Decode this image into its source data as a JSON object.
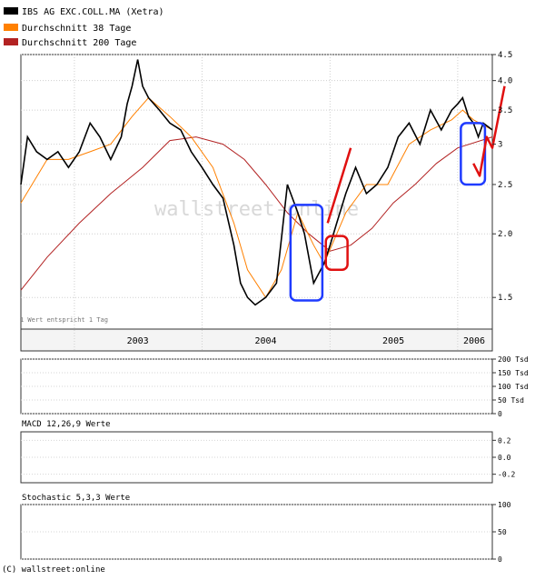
{
  "legend": [
    {
      "label": "IBS AG EXC.COLL.MA (Xetra)",
      "color": "#000000"
    },
    {
      "label": "Durchschnitt 38 Tage",
      "color": "#ff8000"
    },
    {
      "label": "Durchschnitt 200 Tage",
      "color": "#b22222"
    }
  ],
  "footer": "(C) wallstreet:online",
  "watermark": "wallstreet-online",
  "chart_data": [
    {
      "type": "line",
      "panel": "price",
      "ylim": [
        1.3,
        4.5
      ],
      "y_scale": "log",
      "y_ticks": [
        1.5,
        2.0,
        2.5,
        3.0,
        3.5,
        4.0,
        4.5
      ],
      "y_tick_labels": [
        "1.5",
        "2.0",
        "2.5",
        "3",
        "3.5",
        "4.0",
        "4.5"
      ],
      "xlim": [
        "2002-08-01",
        "2006-04-10"
      ],
      "year_ticks": [
        "2003",
        "2004",
        "2005",
        "2006"
      ],
      "annotation": "1 Wert entspricht 1 Tag",
      "grid": true,
      "series": [
        {
          "name": "IBS AG EXC.COLL.MA (Xetra)",
          "color": "#000000",
          "x": [
            "2002-08-01",
            "2002-08-20",
            "2002-09-15",
            "2002-10-15",
            "2002-11-15",
            "2002-12-15",
            "2003-01-15",
            "2003-02-15",
            "2003-03-15",
            "2003-04-15",
            "2003-05-15",
            "2003-06-01",
            "2003-06-15",
            "2003-07-01",
            "2003-07-15",
            "2003-08-01",
            "2003-09-01",
            "2003-10-01",
            "2003-11-01",
            "2003-12-01",
            "2004-01-01",
            "2004-02-01",
            "2004-03-01",
            "2004-04-01",
            "2004-04-20",
            "2004-05-10",
            "2004-06-01",
            "2004-07-01",
            "2004-08-01",
            "2004-09-01",
            "2004-10-01",
            "2004-10-20",
            "2004-11-15",
            "2004-12-15",
            "2005-01-01",
            "2005-01-20",
            "2005-02-15",
            "2005-03-15",
            "2005-04-15",
            "2005-05-15",
            "2005-06-15",
            "2005-07-15",
            "2005-08-15",
            "2005-09-15",
            "2005-10-15",
            "2005-11-15",
            "2005-12-15",
            "2006-01-01",
            "2006-01-15",
            "2006-02-01",
            "2006-02-15",
            "2006-03-01",
            "2006-03-15",
            "2006-04-10"
          ],
          "y": [
            2.5,
            3.1,
            2.9,
            2.8,
            2.9,
            2.7,
            2.9,
            3.3,
            3.1,
            2.8,
            3.1,
            3.6,
            3.9,
            4.4,
            3.9,
            3.7,
            3.5,
            3.3,
            3.2,
            2.9,
            2.7,
            2.5,
            2.35,
            1.9,
            1.6,
            1.5,
            1.45,
            1.5,
            1.6,
            2.5,
            2.2,
            2.0,
            1.6,
            1.75,
            1.9,
            2.1,
            2.4,
            2.7,
            2.4,
            2.5,
            2.7,
            3.1,
            3.3,
            3.0,
            3.5,
            3.2,
            3.5,
            3.6,
            3.7,
            3.4,
            3.3,
            3.1,
            3.3,
            3.2
          ]
        },
        {
          "name": "Durchschnitt 38 Tage",
          "color": "#ff8000",
          "x": [
            "2002-08-01",
            "2002-10-15",
            "2002-12-15",
            "2003-02-15",
            "2003-04-15",
            "2003-06-15",
            "2003-08-01",
            "2003-10-01",
            "2003-12-01",
            "2004-02-01",
            "2004-04-01",
            "2004-05-10",
            "2004-07-01",
            "2004-08-15",
            "2004-10-01",
            "2004-11-15",
            "2004-12-15",
            "2005-02-15",
            "2005-04-15",
            "2005-06-15",
            "2005-08-15",
            "2005-10-15",
            "2005-12-15",
            "2006-01-15",
            "2006-02-15",
            "2006-04-10"
          ],
          "y": [
            2.3,
            2.8,
            2.8,
            2.9,
            3.0,
            3.4,
            3.7,
            3.4,
            3.1,
            2.7,
            2.1,
            1.7,
            1.5,
            1.7,
            2.2,
            1.9,
            1.75,
            2.2,
            2.5,
            2.5,
            3.0,
            3.2,
            3.35,
            3.5,
            3.35,
            3.2
          ]
        },
        {
          "name": "Durchschnitt 200 Tage",
          "color": "#b22222",
          "x": [
            "2002-08-01",
            "2002-10-15",
            "2003-01-15",
            "2003-04-15",
            "2003-07-15",
            "2003-10-01",
            "2003-12-15",
            "2004-03-01",
            "2004-05-01",
            "2004-07-01",
            "2004-09-01",
            "2004-11-01",
            "2005-01-01",
            "2005-03-01",
            "2005-05-01",
            "2005-07-01",
            "2005-09-01",
            "2005-11-01",
            "2006-01-01",
            "2006-04-10"
          ],
          "y": [
            1.55,
            1.8,
            2.1,
            2.4,
            2.7,
            3.05,
            3.1,
            3.0,
            2.8,
            2.5,
            2.2,
            2.0,
            1.85,
            1.9,
            2.05,
            2.3,
            2.5,
            2.75,
            2.95,
            3.1
          ]
        }
      ]
    },
    {
      "type": "bar",
      "panel": "volume",
      "ylim": [
        0,
        200
      ],
      "y_ticks": [
        0,
        50,
        100,
        150,
        200
      ],
      "y_tick_labels": [
        "0",
        "50 Tsd",
        "100 Tsd",
        "150 Tsd",
        "200 Tsd"
      ],
      "colors": {
        "up": "#66b266",
        "down": "#e07070"
      }
    },
    {
      "type": "line",
      "panel": "macd",
      "title": "MACD 12,26,9 Werte",
      "ylim": [
        -0.3,
        0.3
      ],
      "y_ticks": [
        0.2,
        0.0,
        -0.2
      ],
      "y_tick_labels": [
        "0.2",
        "0.0",
        "-0.2"
      ]
    },
    {
      "type": "line",
      "panel": "stochastic",
      "title": "Stochastic 5,3,3 Werte",
      "ylim": [
        0,
        100
      ],
      "y_ticks": [
        0,
        50,
        100
      ],
      "y_tick_labels": [
        "0",
        "50",
        "100"
      ]
    }
  ],
  "annotations": {
    "blue_boxes": [
      {
        "x_from": "2004-09-10",
        "x_to": "2004-12-10",
        "y_from": 1.48,
        "y_to": 2.28
      },
      {
        "x_from": "2006-01-10",
        "x_to": "2006-03-20",
        "y_from": 2.5,
        "y_to": 3.3
      }
    ],
    "red_box": {
      "x_from": "2004-12-20",
      "x_to": "2005-02-20",
      "y_from": 1.7,
      "y_to": 1.98
    },
    "red_arrows": [
      {
        "x": [
          "2004-12-25",
          "2005-03-01"
        ],
        "y": [
          2.1,
          2.95
        ]
      },
      {
        "x": [
          "2006-02-15",
          "2006-03-05",
          "2006-03-25",
          "2006-04-10",
          "2006-05-15"
        ],
        "y": [
          2.75,
          2.6,
          3.1,
          2.95,
          3.9
        ]
      }
    ]
  }
}
